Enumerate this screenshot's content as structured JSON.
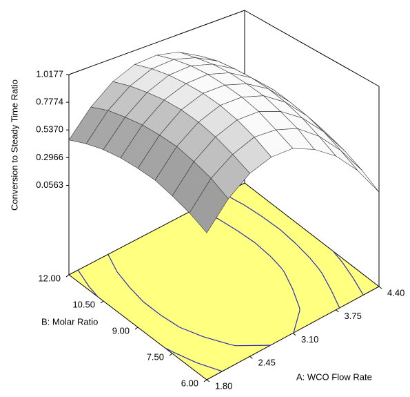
{
  "chart_data": {
    "type": "surface",
    "z_label": "Conversion to Steady Time Ratio",
    "x_label": "A: WCO Flow Rate",
    "y_label": "B: Molar Ratio",
    "x": [
      1.8,
      2.125,
      2.45,
      2.775,
      3.1,
      3.425,
      3.75,
      4.075,
      4.4
    ],
    "y": [
      6,
      6.75,
      7.5,
      8.25,
      9,
      9.75,
      10.5,
      11.25,
      12
    ],
    "z": [
      [
        0.4,
        0.59,
        0.72,
        0.78,
        0.78,
        0.7,
        0.57,
        0.37,
        0.1
      ],
      [
        0.47,
        0.67,
        0.79,
        0.86,
        0.85,
        0.79,
        0.65,
        0.45,
        0.19
      ],
      [
        0.52,
        0.72,
        0.85,
        0.92,
        0.92,
        0.85,
        0.72,
        0.52,
        0.26
      ],
      [
        0.56,
        0.76,
        0.89,
        0.96,
        0.96,
        0.9,
        0.77,
        0.57,
        0.31
      ],
      [
        0.57,
        0.77,
        0.91,
        0.98,
        0.98,
        0.92,
        0.8,
        0.6,
        0.35
      ],
      [
        0.57,
        0.77,
        0.91,
        0.98,
        0.99,
        0.93,
        0.81,
        0.62,
        0.36
      ],
      [
        0.55,
        0.75,
        0.89,
        0.97,
        0.98,
        0.92,
        0.8,
        0.61,
        0.36
      ],
      [
        0.51,
        0.72,
        0.86,
        0.94,
        0.95,
        0.89,
        0.78,
        0.59,
        0.34
      ],
      [
        0.45,
        0.66,
        0.81,
        0.89,
        0.9,
        0.85,
        0.73,
        0.55,
        0.3
      ]
    ],
    "xlim": [
      1.8,
      4.4
    ],
    "ylim": [
      6,
      12
    ],
    "zlim": [
      -0.72,
      1.0177
    ],
    "xticks": [
      {
        "value": 1.8,
        "label": "1.80"
      },
      {
        "value": 2.45,
        "label": "2.45"
      },
      {
        "value": 3.1,
        "label": "3.10"
      },
      {
        "value": 3.75,
        "label": "3.75"
      },
      {
        "value": 4.4,
        "label": "4.40"
      }
    ],
    "yticks": [
      {
        "value": 6,
        "label": "6.00"
      },
      {
        "value": 7.5,
        "label": "7.50"
      },
      {
        "value": 9,
        "label": "9.00"
      },
      {
        "value": 10.5,
        "label": "10.50"
      },
      {
        "value": 12,
        "label": "12.00"
      }
    ],
    "zticks": [
      0.0563,
      0.2966,
      {
        "value": 0.537,
        "label": "0.5370"
      },
      0.7774,
      1.0177
    ],
    "surface_color": "#c8c8c8",
    "floor_color": "#ffff80",
    "contour_color": "#2a2ab8"
  }
}
